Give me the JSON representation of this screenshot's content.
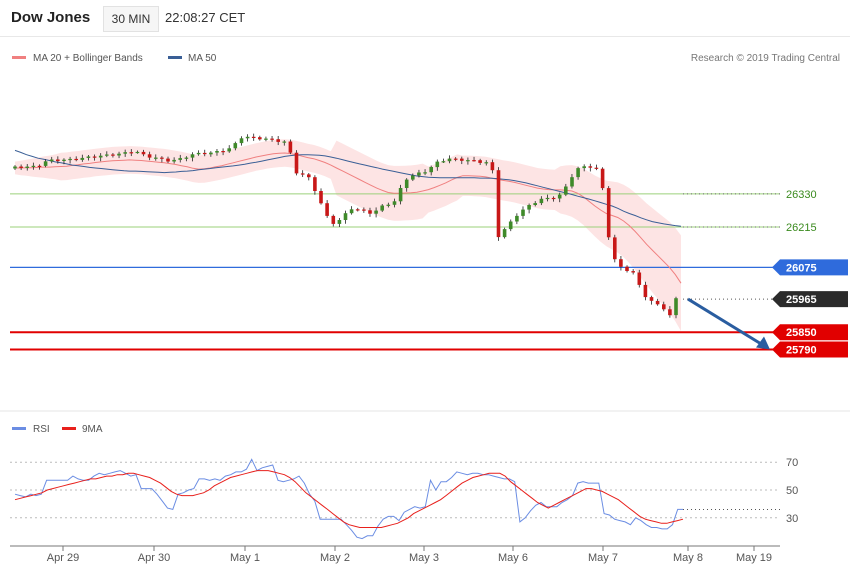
{
  "header": {
    "title": "Dow Jones",
    "timeframe": "30 MIN",
    "time": "22:08:27 CET"
  },
  "legend": {
    "ma20": "MA 20 + Bollinger Bands",
    "ma50": "MA 50",
    "ma20_color": "#f08080",
    "ma50_color": "#3a5f96",
    "credit": "Research © 2019 Trading Central"
  },
  "rsi_legend": {
    "rsi": "RSI",
    "ma9": "9MA",
    "rsi_color": "#6b8de3",
    "ma9_color": "#e8201c"
  },
  "chart_data": [
    {
      "type": "candlestick",
      "title": "Dow Jones",
      "ylim": [
        25580,
        26760
      ],
      "x_ticks": [
        "Apr 29",
        "Apr 30",
        "May 1",
        "May 2",
        "May 3",
        "May 6",
        "May 7",
        "May 8",
        "May 19"
      ],
      "levels": [
        {
          "label": "26330",
          "value": 26330,
          "color": "#9bd07a",
          "style": "support"
        },
        {
          "label": "26215",
          "value": 26215,
          "color": "#9bd07a",
          "style": "support"
        },
        {
          "label": "26075",
          "value": 26075,
          "color": "#2f6bdc",
          "style": "pivot"
        },
        {
          "label": "25965",
          "value": 25965,
          "color": "#333333",
          "style": "last"
        },
        {
          "label": "25850",
          "value": 25850,
          "color": "#e10000",
          "style": "target"
        },
        {
          "label": "25790",
          "value": 25790,
          "color": "#e10000",
          "style": "target"
        }
      ],
      "forecast_arrow": {
        "from": 25965,
        "to": 25790,
        "color": "#2a5da0"
      },
      "series": [
        {
          "name": "MA 50",
          "values": [
            26481,
            26474,
            26466,
            26460,
            26454,
            26450,
            26446,
            26441,
            26438,
            26434,
            26430,
            26428,
            26425,
            26422,
            26420,
            26418,
            26416,
            26414,
            26412,
            26410,
            26409,
            26409,
            26408,
            26407,
            26406,
            26405,
            26404,
            26405,
            26406,
            26408,
            26409,
            26411,
            26414,
            26416,
            26418,
            26421,
            26423,
            26425,
            26427,
            26430,
            26433,
            26437,
            26440,
            26444,
            26448,
            26452,
            26456,
            26460,
            26463,
            26465,
            26466,
            26466,
            26465,
            26464,
            26462,
            26458,
            26454,
            26449,
            26444,
            26439,
            26434,
            26430,
            26425,
            26421,
            26416,
            26412,
            26408,
            26404,
            26400,
            26396,
            26392,
            26390,
            26388,
            26387,
            26386,
            26386,
            26386,
            26386,
            26386,
            26386,
            26386,
            26385,
            26385,
            26384,
            26383,
            26381,
            26379,
            26376,
            26372,
            26368,
            26363,
            26358,
            26353,
            26348,
            26343,
            26338,
            26333,
            26328,
            26322,
            26317,
            26312,
            26306,
            26300,
            26294,
            26288,
            26280,
            26270,
            26262,
            26255,
            26247,
            26240,
            26234,
            26230,
            26226,
            26223,
            26220,
            26218
          ]
        },
        {
          "name": "MA 20",
          "values": [
            26420,
            26420,
            26421,
            26421,
            26422,
            26423,
            26423,
            26424,
            26425,
            26426,
            26429,
            26431,
            26434,
            26436,
            26439,
            26441,
            26443,
            26445,
            26446,
            26447,
            26448,
            26447,
            26446,
            26444,
            26442,
            26440,
            26438,
            26435,
            26432,
            26428,
            26424,
            26419,
            26416,
            26417,
            26420,
            26424,
            26428,
            26433,
            26438,
            26443,
            26448,
            26453,
            26458,
            26462,
            26466,
            26469,
            26471,
            26472,
            26470,
            26466,
            26461,
            26456,
            26452,
            26446,
            26439,
            26430,
            26420,
            26410,
            26400,
            26390,
            26380,
            26370,
            26360,
            26350,
            26342,
            26335,
            26332,
            26332,
            26333,
            26334,
            26336,
            26340,
            26345,
            26352,
            26360,
            26368,
            26378,
            26387,
            26393,
            26393,
            26392,
            26391,
            26389,
            26385,
            26381,
            26377,
            26374,
            26370,
            26365,
            26360,
            26355,
            26350,
            26347,
            26345,
            26344,
            26344,
            26343,
            26340,
            26332,
            26320,
            26304,
            26288,
            26274,
            26262,
            26255,
            26248,
            26236,
            26220,
            26200,
            26178,
            26155,
            26135,
            26115,
            26095,
            26075,
            26050,
            26020
          ]
        }
      ],
      "candles_count": 109
    },
    {
      "type": "line",
      "title": "RSI",
      "ylim": [
        14,
        86
      ],
      "y_ticks": [
        "70",
        "50",
        "30"
      ],
      "series": [
        {
          "name": "RSI",
          "values": [
            47,
            46,
            45,
            47,
            46,
            47,
            57,
            57,
            57,
            57,
            57,
            60,
            58,
            57,
            57,
            60,
            62,
            61,
            62,
            63,
            64,
            62,
            60,
            61,
            51,
            51,
            51,
            47,
            42,
            37,
            36,
            47,
            48,
            50,
            51,
            58,
            58,
            57,
            58,
            57,
            60,
            61,
            63,
            63,
            65,
            72,
            64,
            66,
            67,
            68,
            57,
            56,
            57,
            58,
            60,
            55,
            47,
            42,
            29,
            29,
            29,
            29,
            29,
            25,
            21,
            16,
            15,
            17,
            17,
            24,
            29,
            31,
            31,
            28,
            34,
            36,
            38,
            37,
            38,
            57,
            50,
            56,
            56,
            59,
            63,
            62,
            61,
            62,
            62,
            61,
            61,
            60,
            59,
            58,
            58,
            56,
            27,
            30,
            35,
            39,
            41,
            38,
            38,
            38,
            41,
            43,
            46,
            55,
            56,
            55,
            55,
            55,
            33,
            32,
            29,
            28,
            27,
            25,
            30,
            28,
            25,
            23,
            23,
            22,
            22,
            25,
            36,
            36
          ]
        },
        {
          "name": "9MA",
          "values": [
            43,
            44,
            45,
            46,
            47,
            48,
            50,
            51,
            52,
            53,
            54,
            55,
            56,
            57,
            58,
            58,
            59,
            60,
            60,
            61,
            61,
            62,
            62,
            61,
            60,
            59,
            57,
            55,
            52,
            49,
            47,
            46,
            46,
            46,
            47,
            48,
            50,
            53,
            55,
            57,
            59,
            60,
            61,
            62,
            63,
            64,
            64,
            64,
            63,
            62,
            61,
            59,
            56,
            52,
            48,
            45,
            42,
            39,
            36,
            33,
            30,
            27,
            25,
            24,
            23,
            23,
            23,
            23,
            23,
            24,
            25,
            26,
            28,
            30,
            33,
            35,
            37,
            39,
            41,
            43,
            46,
            49,
            52,
            55,
            57,
            59,
            60,
            61,
            62,
            62,
            62,
            60,
            56,
            53,
            50,
            47,
            44,
            41,
            39,
            37,
            39,
            41,
            43,
            45,
            47,
            49,
            51,
            51,
            50,
            49,
            47,
            45,
            43,
            40,
            37,
            34,
            31,
            29,
            28,
            27,
            26,
            26,
            27,
            28,
            29
          ]
        }
      ]
    }
  ]
}
